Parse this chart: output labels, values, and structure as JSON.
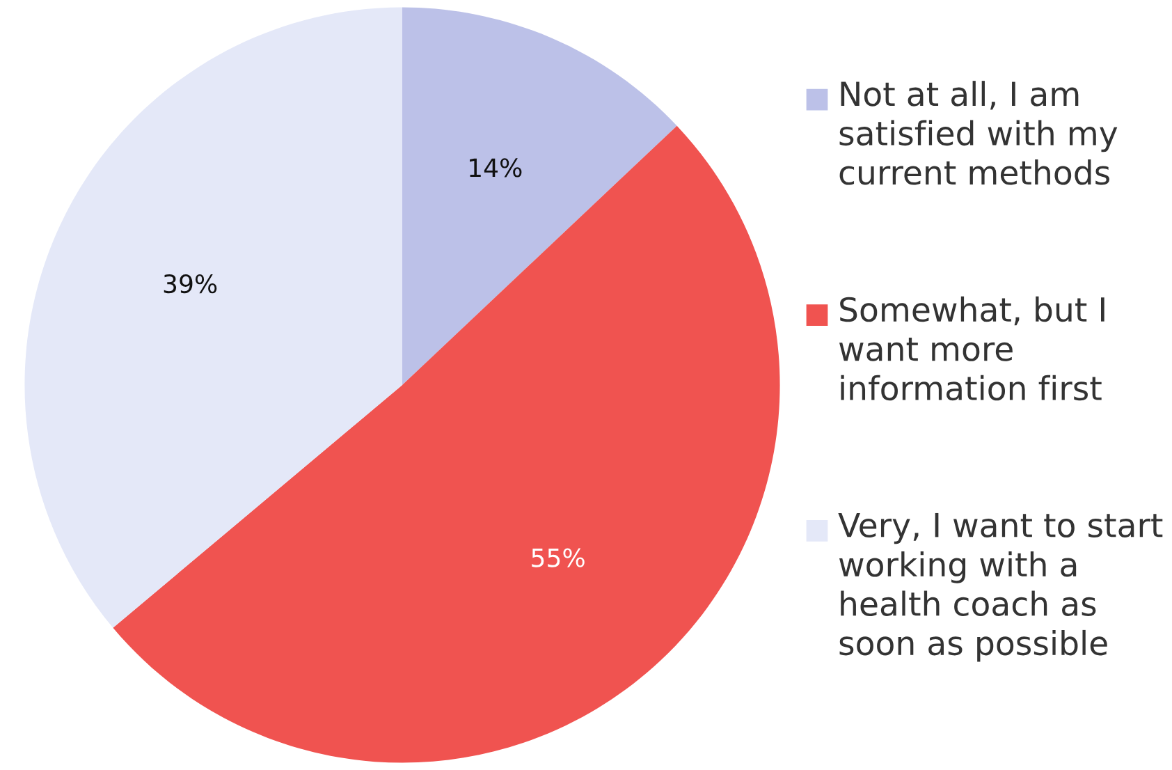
{
  "chart_data": {
    "type": "pie",
    "categories": [
      "Not at all, I am satisfied with my current methods",
      "Somewhat, but I want more information first",
      "Very, I want to start working with a health coach as soon as possible"
    ],
    "values": [
      14,
      55,
      39
    ],
    "colors": [
      "#bcc1e8",
      "#f05350",
      "#e4e8f8"
    ],
    "value_labels": [
      "14%",
      "55%",
      "39%"
    ],
    "legend": "right"
  }
}
